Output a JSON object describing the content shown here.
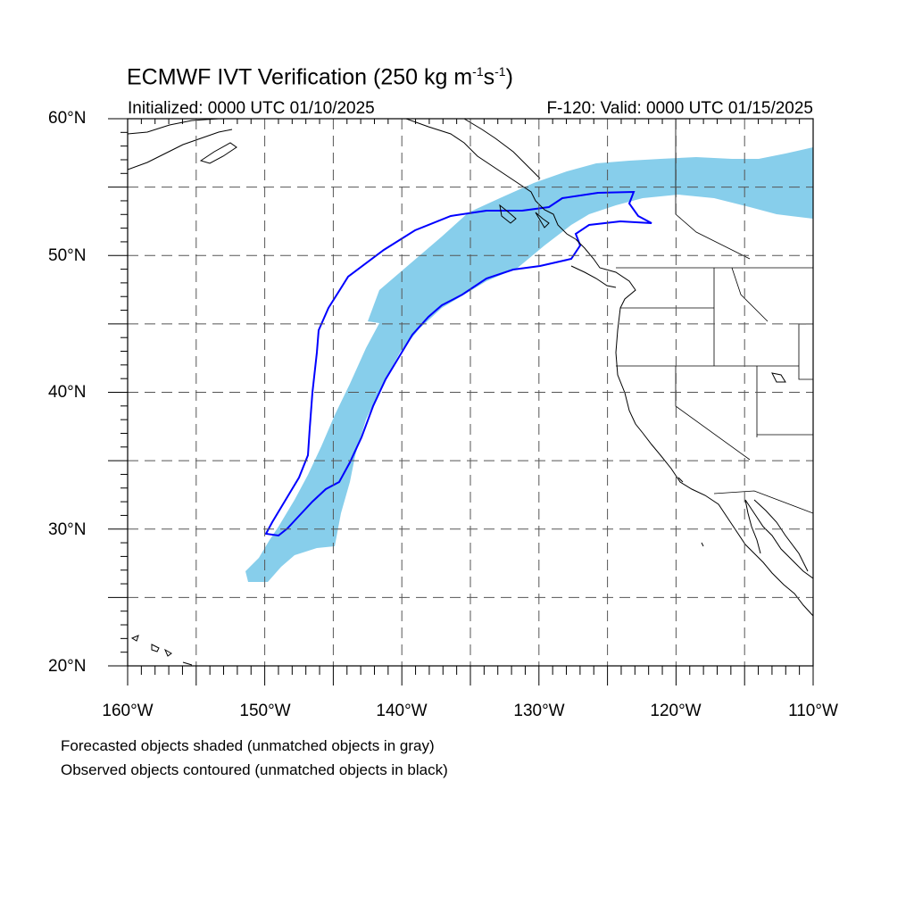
{
  "title": "ECMWF IVT Verification (250 kg m",
  "title_exp1": "-1",
  "title_mid": "s",
  "title_exp2": "-1",
  "title_end": ")",
  "init_text": "Initialized: 0000 UTC 01/10/2025",
  "valid_text": "F-120: Valid: 0000 UTC 01/15/2025",
  "lat_labels": [
    "60°N",
    "50°N",
    "40°N",
    "30°N",
    "20°N"
  ],
  "lon_labels": [
    "160°W",
    "150°W",
    "140°W",
    "130°W",
    "120°W",
    "110°W"
  ],
  "notes": {
    "line1": "Forecasted objects shaded (unmatched objects in gray)",
    "line2": "Observed objects contoured (unmatched objects in black)"
  },
  "colors": {
    "forecast_fill": "#87ceeb",
    "observed_contour": "#0000ff",
    "coastline": "#000000",
    "grid": "#555555"
  },
  "map_extent": {
    "lon_min": -160,
    "lon_max": -110,
    "lat_min": 20,
    "lat_max": 60
  }
}
